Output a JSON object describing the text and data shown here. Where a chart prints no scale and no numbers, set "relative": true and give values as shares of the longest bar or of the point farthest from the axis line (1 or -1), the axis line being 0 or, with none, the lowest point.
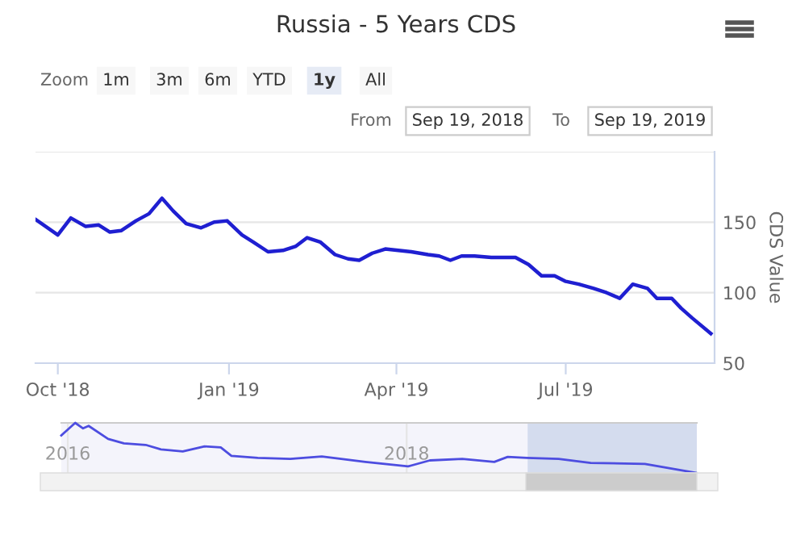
{
  "chart_data": [
    {
      "type": "line",
      "title": "Russia - 5 Years CDS",
      "ylabel": "CDS Value",
      "annotations": [
        "Zoom",
        "1m",
        "3m",
        "6m",
        "YTD",
        "1y",
        "All",
        "From",
        "Sep 19, 2018",
        "To",
        "Sep 19, 2019"
      ],
      "xlim": [
        "2018-09-19",
        "2019-09-19"
      ],
      "xticks": [
        {
          "value": "2018-10-01",
          "label": "Oct '18"
        },
        {
          "value": "2019-01-01",
          "label": "Jan '19"
        },
        {
          "value": "2019-04-01",
          "label": "Apr '19"
        },
        {
          "value": "2019-07-01",
          "label": "Jul '19"
        }
      ],
      "ylim": [
        50,
        200
      ],
      "yticks": [
        50,
        100,
        150,
        {
          "value": 200,
          "label": null
        }
      ],
      "grid": "y",
      "legend": false,
      "series": [
        {
          "color": "#1f1fd1",
          "x": [
            "2018-09-19",
            "2018-10-01",
            "2018-10-08",
            "2018-10-16",
            "2018-10-23",
            "2018-10-29",
            "2018-11-04",
            "2018-11-12",
            "2018-11-19",
            "2018-11-26",
            "2018-12-02",
            "2018-12-09",
            "2018-12-17",
            "2018-12-24",
            "2018-12-31",
            "2019-01-08",
            "2019-01-14",
            "2019-01-22",
            "2019-01-30",
            "2019-02-06",
            "2019-02-12",
            "2019-02-19",
            "2019-02-27",
            "2019-03-06",
            "2019-03-12",
            "2019-03-19",
            "2019-03-26",
            "2019-04-02",
            "2019-04-09",
            "2019-04-18",
            "2019-04-24",
            "2019-04-30",
            "2019-05-06",
            "2019-05-13",
            "2019-05-22",
            "2019-06-04",
            "2019-06-11",
            "2019-06-18",
            "2019-06-25",
            "2019-07-01",
            "2019-07-08",
            "2019-07-16",
            "2019-07-23",
            "2019-07-30",
            "2019-08-06",
            "2019-08-14",
            "2019-08-19",
            "2019-08-27",
            "2019-09-01",
            "2019-09-07",
            "2019-09-17"
          ],
          "values": [
            152,
            141,
            153,
            147,
            148,
            143,
            144,
            151,
            156,
            167,
            158,
            149,
            146,
            150,
            151,
            141,
            136,
            129,
            130,
            133,
            139,
            136,
            127,
            124,
            123,
            128,
            131,
            130,
            129,
            127,
            126,
            123,
            126,
            126,
            125,
            125,
            120,
            112,
            112,
            108,
            106,
            103,
            100,
            96,
            106,
            103,
            96,
            96,
            89,
            82,
            71
          ]
        }
      ]
    },
    {
      "type": "line",
      "relative": true,
      "grid": "x",
      "legend": false,
      "xlim": [
        "2015-12-18",
        "2019-09-19"
      ],
      "xticks": [
        {
          "value": "2016-01-01",
          "label": "2016"
        },
        {
          "value": "2018-01-01",
          "label": "2018"
        }
      ],
      "bands": [
        {
          "axis": "x",
          "from": "2018-09-19",
          "to": "2019-09-19",
          "color": "#ccd6eb"
        }
      ],
      "series": [
        {
          "color": "#4d4de0",
          "x": [
            "2015-12-18",
            "2016-01-17",
            "2016-02-03",
            "2016-02-15",
            "2016-03-28",
            "2016-05-01",
            "2016-06-17",
            "2016-07-20",
            "2016-09-05",
            "2016-10-22",
            "2016-11-26",
            "2016-12-19",
            "2017-02-14",
            "2017-04-25",
            "2017-07-02",
            "2017-10-04",
            "2018-01-04",
            "2018-02-20",
            "2018-05-01",
            "2018-07-09",
            "2018-08-07",
            "2018-09-17",
            "2018-11-25",
            "2019-02-02",
            "2019-05-30",
            "2019-09-17"
          ],
          "values": [
            0.75,
            1,
            0.89,
            0.94,
            0.68,
            0.59,
            0.56,
            0.47,
            0.43,
            0.53,
            0.51,
            0.34,
            0.3,
            0.28,
            0.33,
            0.22,
            0.13,
            0.25,
            0.28,
            0.22,
            0.32,
            0.3,
            0.28,
            0.2,
            0.18,
            0
          ]
        }
      ]
    }
  ]
}
